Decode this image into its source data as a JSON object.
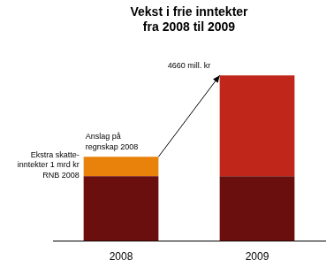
{
  "chart_data": {
    "type": "bar",
    "title": "Vekst i frie inntekter\nfra 2008 til 2009",
    "categories": [
      "2008",
      "2009"
    ],
    "series": [
      {
        "color": "#6B0E0E",
        "values": [
          3.0,
          3.0
        ]
      },
      {
        "color": "#E8820A",
        "values": [
          0.9,
          null
        ]
      },
      {
        "color": "#C0271A",
        "values": [
          null,
          4.66
        ]
      }
    ],
    "stacked": true,
    "ylim": [
      0,
      9.2
    ],
    "tick_labels": "x",
    "grid": false,
    "annotations": [
      "4660 mill. kr",
      "Anslag på\nregnskap 2008",
      "Ekstra skatte-\ninntekter 1 mrd kr\nRNB 2008"
    ]
  }
}
